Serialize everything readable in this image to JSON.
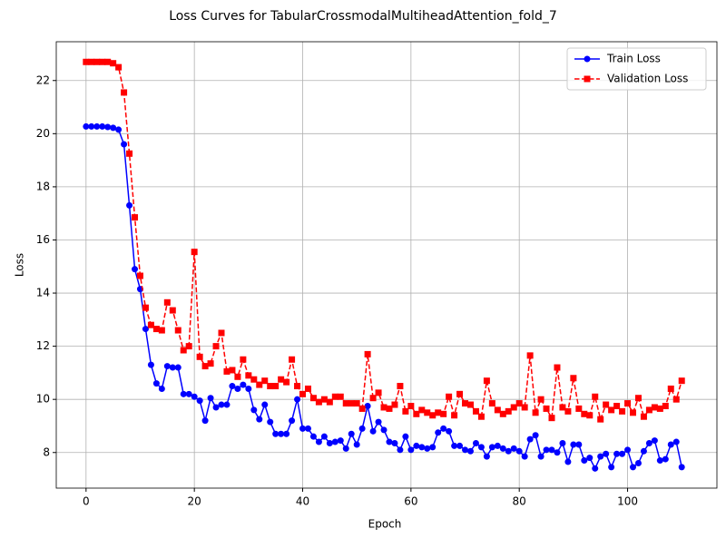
{
  "chart_data": {
    "type": "line",
    "title": "Loss Curves for TabularCrossmodalMultiheadAttention_fold_7",
    "x_label": "Epoch",
    "y_label": "Loss",
    "x": [
      0,
      1,
      2,
      3,
      4,
      5,
      6,
      7,
      8,
      9,
      10,
      11,
      12,
      13,
      14,
      15,
      16,
      17,
      18,
      19,
      20,
      21,
      22,
      23,
      24,
      25,
      26,
      27,
      28,
      29,
      30,
      31,
      32,
      33,
      34,
      35,
      36,
      37,
      38,
      39,
      40,
      41,
      42,
      43,
      44,
      45,
      46,
      47,
      48,
      49,
      50,
      51,
      52,
      53,
      54,
      55,
      56,
      57,
      58,
      59,
      60,
      61,
      62,
      63,
      64,
      65,
      66,
      67,
      68,
      69,
      70,
      71,
      72,
      73,
      74,
      75,
      76,
      77,
      78,
      79,
      80,
      81,
      82,
      83,
      84,
      85,
      86,
      87,
      88,
      89,
      90,
      91,
      92,
      93,
      94,
      95,
      96,
      97,
      98,
      99,
      100,
      101,
      102,
      103,
      104,
      105,
      106,
      107,
      108,
      109,
      110
    ],
    "series": [
      {
        "name": "Train Loss",
        "color": "#0000ff",
        "linestyle": "solid",
        "marker": "circle",
        "values": [
          20.27,
          20.27,
          20.27,
          20.27,
          20.25,
          20.22,
          20.15,
          19.6,
          17.3,
          14.9,
          14.15,
          12.65,
          11.3,
          10.6,
          10.4,
          11.25,
          11.2,
          11.2,
          10.2,
          10.2,
          10.1,
          9.95,
          9.2,
          10.05,
          9.7,
          9.8,
          9.8,
          10.5,
          10.4,
          10.55,
          10.4,
          9.6,
          9.25,
          9.8,
          9.15,
          8.7,
          8.7,
          8.7,
          9.2,
          10.0,
          8.9,
          8.9,
          8.6,
          8.4,
          8.6,
          8.35,
          8.4,
          8.45,
          8.15,
          8.7,
          8.3,
          8.9,
          9.75,
          8.8,
          9.15,
          8.85,
          8.4,
          8.35,
          8.1,
          8.6,
          8.1,
          8.25,
          8.2,
          8.15,
          8.2,
          8.75,
          8.9,
          8.8,
          8.25,
          8.25,
          8.1,
          8.05,
          8.35,
          8.2,
          7.85,
          8.2,
          8.25,
          8.15,
          8.05,
          8.15,
          8.05,
          7.85,
          8.5,
          8.65,
          7.85,
          8.1,
          8.1,
          8.0,
          8.35,
          7.65,
          8.3,
          8.3,
          7.7,
          7.8,
          7.4,
          7.85,
          7.95,
          7.45,
          7.95,
          7.95,
          8.1,
          7.45,
          7.6,
          8.05,
          8.35,
          8.45,
          7.7,
          7.75,
          8.3,
          8.4,
          7.45
        ]
      },
      {
        "name": "Validation Loss",
        "color": "#ff0000",
        "linestyle": "dashed",
        "marker": "square",
        "values": [
          22.7,
          22.7,
          22.7,
          22.7,
          22.7,
          22.65,
          22.5,
          21.55,
          19.25,
          16.85,
          14.65,
          13.45,
          12.8,
          12.65,
          12.6,
          13.65,
          13.35,
          12.6,
          11.85,
          12.0,
          15.55,
          11.6,
          11.25,
          11.35,
          12.0,
          12.5,
          11.05,
          11.1,
          10.85,
          11.5,
          10.9,
          10.75,
          10.55,
          10.7,
          10.5,
          10.5,
          10.75,
          10.65,
          11.5,
          10.5,
          10.2,
          10.4,
          10.05,
          9.9,
          10.0,
          9.9,
          10.1,
          10.1,
          9.85,
          9.85,
          9.85,
          9.65,
          11.7,
          10.05,
          10.25,
          9.7,
          9.65,
          9.8,
          10.5,
          9.55,
          9.75,
          9.45,
          9.6,
          9.5,
          9.4,
          9.5,
          9.45,
          10.1,
          9.4,
          10.2,
          9.85,
          9.8,
          9.55,
          9.35,
          10.7,
          9.85,
          9.6,
          9.45,
          9.55,
          9.7,
          9.85,
          9.7,
          11.65,
          9.5,
          10.0,
          9.65,
          9.3,
          11.2,
          9.7,
          9.55,
          10.8,
          9.65,
          9.45,
          9.4,
          10.1,
          9.25,
          9.8,
          9.6,
          9.75,
          9.55,
          9.85,
          9.5,
          10.05,
          9.35,
          9.6,
          9.7,
          9.65,
          9.75,
          10.4,
          10.0,
          10.7
        ]
      }
    ],
    "xlim": [
      -5.5,
      116.5
    ],
    "ylim": [
      6.66,
      23.46
    ],
    "xticks": [
      0,
      20,
      40,
      60,
      80,
      100
    ],
    "yticks": [
      8,
      10,
      12,
      14,
      16,
      18,
      20,
      22
    ],
    "grid": true,
    "legend": "upper right"
  }
}
